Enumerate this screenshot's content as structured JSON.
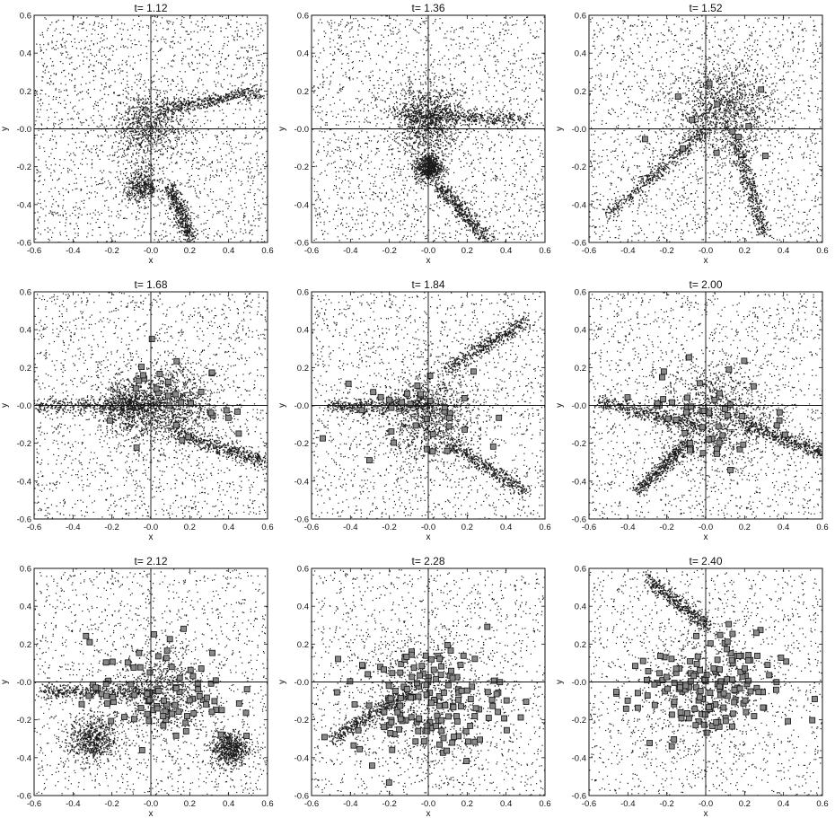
{
  "chart_data": {
    "type": "scatter",
    "layout": "3x3 grid of panels",
    "xlabel": "x",
    "ylabel": "y",
    "xlim": [
      -0.6,
      0.6
    ],
    "ylim": [
      -0.6,
      0.6
    ],
    "x_tick_labels": [
      "-0.6",
      "-0.4",
      "-0.2",
      "-0.0",
      "0.2",
      "0.4",
      "0.6"
    ],
    "y_tick_labels": [
      "0.6",
      "0.4",
      "0.2",
      "-0.0",
      "-0.2",
      "-0.4",
      "-0.6"
    ],
    "grid": false,
    "crosshair_at_origin": true,
    "marker_colors": {
      "particles": "#1a1a1a",
      "clumps": "#8a8a8a"
    },
    "panels": [
      {
        "title": "t= 1.12",
        "t": 1.12,
        "clump_count": 0,
        "features": [
          {
            "kind": "blob",
            "x": -0.02,
            "y": 0.02,
            "size": 0.15,
            "density": 0.9
          },
          {
            "kind": "filament",
            "x0": 0.05,
            "y0": 0.1,
            "x1": 0.55,
            "y1": 0.2
          },
          {
            "kind": "filament",
            "x0": 0.1,
            "y0": -0.3,
            "x1": 0.2,
            "y1": -0.58
          },
          {
            "kind": "blob",
            "x": -0.05,
            "y": -0.3,
            "size": 0.08,
            "density": 0.5
          }
        ]
      },
      {
        "title": "t= 1.36",
        "t": 1.36,
        "clump_count": 0,
        "features": [
          {
            "kind": "blob",
            "x": 0.0,
            "y": 0.05,
            "size": 0.15,
            "density": 1.2
          },
          {
            "kind": "filament",
            "x0": -0.15,
            "y0": 0.08,
            "x1": 0.5,
            "y1": 0.05
          },
          {
            "kind": "filament",
            "x0": 0.05,
            "y0": -0.3,
            "x1": 0.3,
            "y1": -0.58
          },
          {
            "kind": "blob",
            "x": 0.0,
            "y": -0.2,
            "size": 0.06,
            "density": 0.8
          }
        ]
      },
      {
        "title": "t= 1.52",
        "t": 1.52,
        "clump_count": 12,
        "features": [
          {
            "kind": "blob",
            "x": 0.1,
            "y": 0.1,
            "size": 0.2,
            "density": 1.3
          },
          {
            "kind": "filament",
            "x0": -0.5,
            "y0": -0.45,
            "x1": 0.0,
            "y1": 0.0
          },
          {
            "kind": "filament",
            "x0": 0.15,
            "y0": -0.05,
            "x1": 0.3,
            "y1": -0.55
          }
        ]
      },
      {
        "title": "t= 1.68",
        "t": 1.68,
        "clump_count": 30,
        "features": [
          {
            "kind": "blob",
            "x": 0.1,
            "y": 0.0,
            "size": 0.18,
            "density": 1.3
          },
          {
            "kind": "filament",
            "x0": -0.6,
            "y0": 0.0,
            "x1": 0.05,
            "y1": 0.0
          },
          {
            "kind": "filament",
            "x0": 0.15,
            "y0": -0.15,
            "x1": 0.6,
            "y1": -0.3
          },
          {
            "kind": "blob",
            "x": -0.12,
            "y": 0.0,
            "size": 0.12,
            "density": 0.8
          }
        ]
      },
      {
        "title": "t= 1.84",
        "t": 1.84,
        "clump_count": 34,
        "features": [
          {
            "kind": "blob",
            "x": 0.0,
            "y": -0.05,
            "size": 0.2,
            "density": 1.3
          },
          {
            "kind": "filament",
            "x0": -0.5,
            "y0": 0.0,
            "x1": 0.0,
            "y1": 0.0
          },
          {
            "kind": "filament",
            "x0": 0.1,
            "y0": 0.2,
            "x1": 0.5,
            "y1": 0.45
          },
          {
            "kind": "filament",
            "x0": 0.1,
            "y0": -0.2,
            "x1": 0.5,
            "y1": -0.45
          }
        ]
      },
      {
        "title": "t= 2.00",
        "t": 2.0,
        "clump_count": 48,
        "features": [
          {
            "kind": "blob",
            "x": 0.05,
            "y": -0.05,
            "size": 0.22,
            "density": 1.3
          },
          {
            "kind": "filament",
            "x0": -0.55,
            "y0": 0.02,
            "x1": -0.05,
            "y1": -0.1
          },
          {
            "kind": "filament",
            "x0": -0.1,
            "y0": -0.2,
            "x1": -0.35,
            "y1": -0.45
          },
          {
            "kind": "filament",
            "x0": 0.2,
            "y0": -0.1,
            "x1": 0.6,
            "y1": -0.25
          }
        ]
      },
      {
        "title": "t= 2.12",
        "t": 2.12,
        "clump_count": 90,
        "features": [
          {
            "kind": "blob",
            "x": 0.05,
            "y": -0.05,
            "size": 0.2,
            "density": 1.0
          },
          {
            "kind": "filament",
            "x0": -0.55,
            "y0": -0.05,
            "x1": 0.0,
            "y1": -0.05
          },
          {
            "kind": "blob",
            "x": -0.3,
            "y": -0.3,
            "size": 0.1,
            "density": 0.8
          },
          {
            "kind": "blob",
            "x": 0.4,
            "y": -0.35,
            "size": 0.08,
            "density": 0.8
          }
        ]
      },
      {
        "title": "t= 2.28",
        "t": 2.28,
        "clump_count": 150,
        "features": [
          {
            "kind": "blob",
            "x": 0.0,
            "y": -0.1,
            "size": 0.3,
            "density": 0.9
          },
          {
            "kind": "filament",
            "x0": -0.5,
            "y0": -0.3,
            "x1": -0.1,
            "y1": -0.05
          }
        ]
      },
      {
        "title": "t= 2.40",
        "t": 2.4,
        "clump_count": 150,
        "features": [
          {
            "kind": "blob",
            "x": 0.0,
            "y": -0.05,
            "size": 0.3,
            "density": 0.7
          },
          {
            "kind": "filament",
            "x0": -0.3,
            "y0": 0.55,
            "x1": 0.0,
            "y1": 0.3
          }
        ]
      }
    ]
  }
}
